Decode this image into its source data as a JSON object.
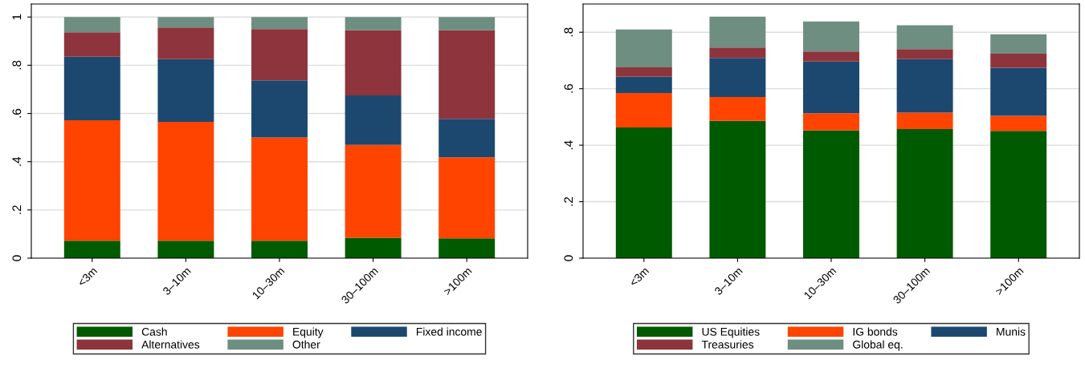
{
  "chart_data": [
    {
      "type": "bar",
      "stacked": true,
      "categories": [
        "<3m",
        "3–10m",
        "10–30m",
        "30–100m",
        ">100m"
      ],
      "ylim": [
        0,
        1.054
      ],
      "yticks": [
        {
          "value": 0,
          "label": "0"
        },
        {
          "value": 0.2,
          "label": ".2"
        },
        {
          "value": 0.4,
          "label": ".4"
        },
        {
          "value": 0.6,
          "label": ".6"
        },
        {
          "value": 0.8,
          "label": ".8"
        },
        {
          "value": 1,
          "label": "1"
        }
      ],
      "grid": "y",
      "legend": "bottom",
      "series": [
        {
          "name": "Cash",
          "color": "#005a00",
          "values": [
            0.072,
            0.072,
            0.072,
            0.085,
            0.082
          ]
        },
        {
          "name": "Equity",
          "color": "#ff4400",
          "values": [
            0.5,
            0.493,
            0.428,
            0.385,
            0.336
          ]
        },
        {
          "name": "Fixed income",
          "color": "#1c4870",
          "values": [
            0.263,
            0.26,
            0.237,
            0.205,
            0.16
          ]
        },
        {
          "name": "Alternatives",
          "color": "#8e343c",
          "values": [
            0.102,
            0.132,
            0.213,
            0.27,
            0.367
          ]
        },
        {
          "name": "Other",
          "color": "#6e8e82",
          "values": [
            0.063,
            0.043,
            0.05,
            0.055,
            0.055
          ]
        }
      ]
    },
    {
      "type": "bar",
      "stacked": true,
      "categories": [
        "<3m",
        "3–10m",
        "10–30m",
        "30–100m",
        ">100m"
      ],
      "ylim": [
        0,
        0.9
      ],
      "yticks": [
        {
          "value": 0,
          "label": "0"
        },
        {
          "value": 0.2,
          "label": ".2"
        },
        {
          "value": 0.4,
          "label": ".4"
        },
        {
          "value": 0.6,
          "label": ".6"
        },
        {
          "value": 0.8,
          "label": ".8"
        }
      ],
      "grid": "y",
      "legend": "bottom",
      "series": [
        {
          "name": "US Equities",
          "color": "#005a00",
          "values": [
            0.463,
            0.486,
            0.453,
            0.457,
            0.451
          ]
        },
        {
          "name": "IG bonds",
          "color": "#ff4400",
          "values": [
            0.122,
            0.085,
            0.06,
            0.058,
            0.053
          ]
        },
        {
          "name": "Munis",
          "color": "#1c4870",
          "values": [
            0.058,
            0.138,
            0.183,
            0.19,
            0.17
          ]
        },
        {
          "name": "Treasuries",
          "color": "#8e343c",
          "values": [
            0.033,
            0.037,
            0.036,
            0.035,
            0.05
          ]
        },
        {
          "name": "Global eq.",
          "color": "#6e8e82",
          "values": [
            0.134,
            0.109,
            0.106,
            0.085,
            0.069
          ]
        }
      ]
    }
  ]
}
